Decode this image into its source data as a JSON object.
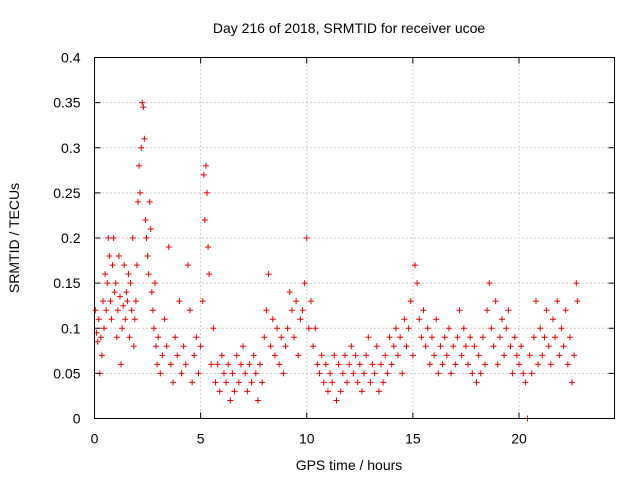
{
  "chart_data": {
    "type": "scatter",
    "title": "Day 216 of 2018, SRMTID for receiver ucoe",
    "xlabel": "GPS time / hours",
    "ylabel": "SRMTID / TECUs",
    "xlim": [
      0,
      24.5
    ],
    "ylim": [
      0,
      0.4
    ],
    "xticks": [
      0,
      5,
      10,
      15,
      20
    ],
    "xtick_labels": [
      "0",
      "5",
      "10",
      "15",
      "20"
    ],
    "yticks": [
      0,
      0.05,
      0.1,
      0.15,
      0.2,
      0.25,
      0.3,
      0.35,
      0.4
    ],
    "ytick_labels": [
      "0",
      "0.05",
      "0.1",
      "0.15",
      "0.2",
      "0.25",
      "0.3",
      "0.35",
      "0.4"
    ],
    "grid": true,
    "marker": "+",
    "color": "#ee0000",
    "series": [
      {
        "name": "SRMTID",
        "points": [
          [
            0.05,
            0.12
          ],
          [
            0.1,
            0.095
          ],
          [
            0.15,
            0.085
          ],
          [
            0.2,
            0.11
          ],
          [
            0.25,
            0.05
          ],
          [
            0.3,
            0.09
          ],
          [
            0.35,
            0.07
          ],
          [
            0.4,
            0.13
          ],
          [
            0.45,
            0.1
          ],
          [
            0.5,
            0.16
          ],
          [
            0.55,
            0.12
          ],
          [
            0.6,
            0.15
          ],
          [
            0.65,
            0.2
          ],
          [
            0.7,
            0.18
          ],
          [
            0.75,
            0.13
          ],
          [
            0.8,
            0.11
          ],
          [
            0.85,
            0.17
          ],
          [
            0.9,
            0.2
          ],
          [
            0.95,
            0.14
          ],
          [
            1.0,
            0.15
          ],
          [
            1.05,
            0.09
          ],
          [
            1.1,
            0.12
          ],
          [
            1.15,
            0.18
          ],
          [
            1.2,
            0.135
          ],
          [
            1.25,
            0.06
          ],
          [
            1.3,
            0.1
          ],
          [
            1.35,
            0.125
          ],
          [
            1.4,
            0.17
          ],
          [
            1.45,
            0.11
          ],
          [
            1.5,
            0.14
          ],
          [
            1.55,
            0.13
          ],
          [
            1.6,
            0.16
          ],
          [
            1.65,
            0.09
          ],
          [
            1.7,
            0.15
          ],
          [
            1.75,
            0.12
          ],
          [
            1.8,
            0.2
          ],
          [
            1.85,
            0.08
          ],
          [
            1.9,
            0.11
          ],
          [
            1.95,
            0.13
          ],
          [
            2.0,
            0.17
          ],
          [
            2.05,
            0.24
          ],
          [
            2.1,
            0.28
          ],
          [
            2.15,
            0.25
          ],
          [
            2.2,
            0.3
          ],
          [
            2.25,
            0.35
          ],
          [
            2.3,
            0.345
          ],
          [
            2.35,
            0.31
          ],
          [
            2.4,
            0.22
          ],
          [
            2.45,
            0.2
          ],
          [
            2.5,
            0.18
          ],
          [
            2.55,
            0.16
          ],
          [
            2.6,
            0.24
          ],
          [
            2.65,
            0.21
          ],
          [
            2.7,
            0.14
          ],
          [
            2.75,
            0.12
          ],
          [
            2.8,
            0.1
          ],
          [
            2.85,
            0.15
          ],
          [
            2.9,
            0.08
          ],
          [
            2.95,
            0.06
          ],
          [
            3.0,
            0.09
          ],
          [
            3.1,
            0.05
          ],
          [
            3.2,
            0.07
          ],
          [
            3.3,
            0.11
          ],
          [
            3.4,
            0.08
          ],
          [
            3.5,
            0.19
          ],
          [
            3.6,
            0.06
          ],
          [
            3.7,
            0.04
          ],
          [
            3.8,
            0.09
          ],
          [
            3.9,
            0.07
          ],
          [
            4.0,
            0.13
          ],
          [
            4.1,
            0.05
          ],
          [
            4.2,
            0.08
          ],
          [
            4.3,
            0.06
          ],
          [
            4.4,
            0.17
          ],
          [
            4.5,
            0.12
          ],
          [
            4.6,
            0.04
          ],
          [
            4.7,
            0.07
          ],
          [
            4.8,
            0.09
          ],
          [
            4.9,
            0.05
          ],
          [
            5.0,
            0.08
          ],
          [
            5.1,
            0.13
          ],
          [
            5.15,
            0.27
          ],
          [
            5.2,
            0.22
          ],
          [
            5.25,
            0.28
          ],
          [
            5.3,
            0.25
          ],
          [
            5.35,
            0.19
          ],
          [
            5.4,
            0.16
          ],
          [
            5.5,
            0.06
          ],
          [
            5.6,
            0.1
          ],
          [
            5.7,
            0.04
          ],
          [
            5.8,
            0.06
          ],
          [
            5.9,
            0.03
          ],
          [
            6.0,
            0.07
          ],
          [
            6.1,
            0.05
          ],
          [
            6.2,
            0.04
          ],
          [
            6.3,
            0.06
          ],
          [
            6.4,
            0.02
          ],
          [
            6.5,
            0.05
          ],
          [
            6.6,
            0.03
          ],
          [
            6.7,
            0.07
          ],
          [
            6.8,
            0.04
          ],
          [
            6.9,
            0.06
          ],
          [
            7.0,
            0.08
          ],
          [
            7.1,
            0.05
          ],
          [
            7.2,
            0.03
          ],
          [
            7.3,
            0.06
          ],
          [
            7.4,
            0.04
          ],
          [
            7.5,
            0.07
          ],
          [
            7.6,
            0.05
          ],
          [
            7.7,
            0.02
          ],
          [
            7.8,
            0.06
          ],
          [
            7.9,
            0.04
          ],
          [
            8.0,
            0.09
          ],
          [
            8.1,
            0.12
          ],
          [
            8.2,
            0.16
          ],
          [
            8.3,
            0.08
          ],
          [
            8.4,
            0.11
          ],
          [
            8.5,
            0.07
          ],
          [
            8.6,
            0.1
          ],
          [
            8.7,
            0.06
          ],
          [
            8.8,
            0.09
          ],
          [
            8.9,
            0.05
          ],
          [
            9.0,
            0.08
          ],
          [
            9.1,
            0.1
          ],
          [
            9.2,
            0.14
          ],
          [
            9.3,
            0.12
          ],
          [
            9.4,
            0.09
          ],
          [
            9.5,
            0.13
          ],
          [
            9.6,
            0.07
          ],
          [
            9.7,
            0.11
          ],
          [
            9.8,
            0.12
          ],
          [
            9.9,
            0.15
          ],
          [
            10.0,
            0.2
          ],
          [
            10.1,
            0.1
          ],
          [
            10.2,
            0.13
          ],
          [
            10.3,
            0.08
          ],
          [
            10.4,
            0.1
          ],
          [
            10.5,
            0.06
          ],
          [
            10.6,
            0.05
          ],
          [
            10.7,
            0.07
          ],
          [
            10.8,
            0.04
          ],
          [
            10.9,
            0.06
          ],
          [
            11.0,
            0.03
          ],
          [
            11.1,
            0.05
          ],
          [
            11.2,
            0.04
          ],
          [
            11.3,
            0.07
          ],
          [
            11.4,
            0.02
          ],
          [
            11.5,
            0.06
          ],
          [
            11.6,
            0.03
          ],
          [
            11.7,
            0.05
          ],
          [
            11.8,
            0.07
          ],
          [
            11.9,
            0.04
          ],
          [
            12.0,
            0.06
          ],
          [
            12.1,
            0.08
          ],
          [
            12.2,
            0.05
          ],
          [
            12.3,
            0.07
          ],
          [
            12.4,
            0.04
          ],
          [
            12.5,
            0.06
          ],
          [
            12.6,
            0.03
          ],
          [
            12.7,
            0.05
          ],
          [
            12.8,
            0.07
          ],
          [
            12.9,
            0.09
          ],
          [
            13.0,
            0.04
          ],
          [
            13.1,
            0.06
          ],
          [
            13.2,
            0.05
          ],
          [
            13.3,
            0.08
          ],
          [
            13.4,
            0.03
          ],
          [
            13.5,
            0.06
          ],
          [
            13.6,
            0.04
          ],
          [
            13.7,
            0.07
          ],
          [
            13.8,
            0.05
          ],
          [
            13.9,
            0.09
          ],
          [
            14.0,
            0.06
          ],
          [
            14.1,
            0.08
          ],
          [
            14.2,
            0.1
          ],
          [
            14.3,
            0.07
          ],
          [
            14.4,
            0.09
          ],
          [
            14.5,
            0.05
          ],
          [
            14.6,
            0.11
          ],
          [
            14.7,
            0.08
          ],
          [
            14.8,
            0.1
          ],
          [
            14.9,
            0.13
          ],
          [
            15.0,
            0.07
          ],
          [
            15.1,
            0.17
          ],
          [
            15.2,
            0.15
          ],
          [
            15.3,
            0.11
          ],
          [
            15.4,
            0.09
          ],
          [
            15.5,
            0.12
          ],
          [
            15.6,
            0.08
          ],
          [
            15.7,
            0.1
          ],
          [
            15.8,
            0.06
          ],
          [
            15.9,
            0.09
          ],
          [
            16.0,
            0.07
          ],
          [
            16.1,
            0.11
          ],
          [
            16.2,
            0.05
          ],
          [
            16.3,
            0.08
          ],
          [
            16.4,
            0.06
          ],
          [
            16.5,
            0.09
          ],
          [
            16.6,
            0.07
          ],
          [
            16.7,
            0.1
          ],
          [
            16.8,
            0.05
          ],
          [
            16.9,
            0.08
          ],
          [
            17.0,
            0.06
          ],
          [
            17.1,
            0.09
          ],
          [
            17.2,
            0.12
          ],
          [
            17.3,
            0.07
          ],
          [
            17.4,
            0.1
          ],
          [
            17.5,
            0.08
          ],
          [
            17.6,
            0.06
          ],
          [
            17.7,
            0.09
          ],
          [
            17.8,
            0.05
          ],
          [
            17.9,
            0.08
          ],
          [
            18.0,
            0.04
          ],
          [
            18.1,
            0.07
          ],
          [
            18.2,
            0.05
          ],
          [
            18.3,
            0.09
          ],
          [
            18.4,
            0.06
          ],
          [
            18.5,
            0.12
          ],
          [
            18.6,
            0.15
          ],
          [
            18.7,
            0.1
          ],
          [
            18.8,
            0.08
          ],
          [
            18.9,
            0.13
          ],
          [
            19.0,
            0.06
          ],
          [
            19.1,
            0.09
          ],
          [
            19.2,
            0.11
          ],
          [
            19.3,
            0.07
          ],
          [
            19.4,
            0.1
          ],
          [
            19.5,
            0.12
          ],
          [
            19.6,
            0.08
          ],
          [
            19.7,
            0.05
          ],
          [
            19.8,
            0.09
          ],
          [
            19.9,
            0.07
          ],
          [
            20.0,
            0.06
          ],
          [
            20.1,
            0.08
          ],
          [
            20.2,
            0.05
          ],
          [
            20.3,
            0.04
          ],
          [
            20.4,
            0.0
          ],
          [
            20.5,
            0.07
          ],
          [
            20.6,
            0.05
          ],
          [
            20.7,
            0.09
          ],
          [
            20.8,
            0.13
          ],
          [
            20.9,
            0.06
          ],
          [
            21.0,
            0.1
          ],
          [
            21.1,
            0.07
          ],
          [
            21.2,
            0.09
          ],
          [
            21.3,
            0.12
          ],
          [
            21.4,
            0.08
          ],
          [
            21.5,
            0.06
          ],
          [
            21.6,
            0.11
          ],
          [
            21.7,
            0.09
          ],
          [
            21.8,
            0.13
          ],
          [
            21.9,
            0.07
          ],
          [
            22.0,
            0.1
          ],
          [
            22.1,
            0.08
          ],
          [
            22.2,
            0.12
          ],
          [
            22.3,
            0.06
          ],
          [
            22.4,
            0.09
          ],
          [
            22.5,
            0.04
          ],
          [
            22.6,
            0.07
          ],
          [
            22.7,
            0.15
          ],
          [
            22.75,
            0.13
          ]
        ]
      }
    ]
  }
}
